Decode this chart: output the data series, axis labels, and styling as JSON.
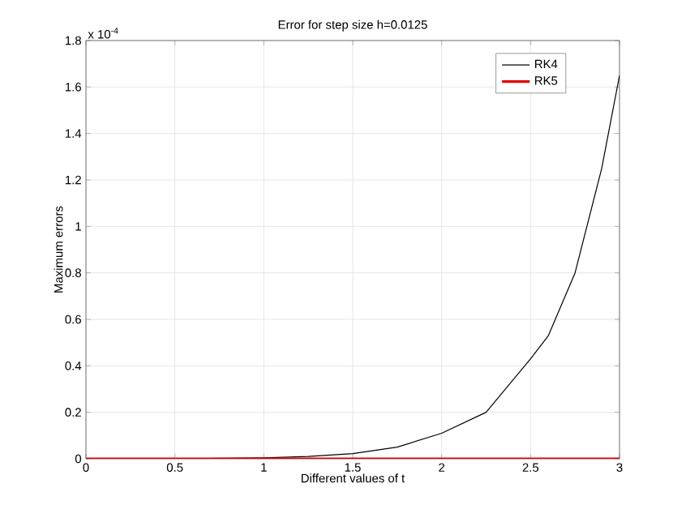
{
  "chart_data": {
    "type": "line",
    "title": "Error for step size h=0.0125",
    "xlabel": "Different values of t",
    "ylabel": "Maximum errors",
    "annotations": [
      "x 10$^{-4}$"
    ],
    "xlim": [
      0,
      3
    ],
    "ylim": [
      0,
      1.8
    ],
    "xticks": [
      0,
      0.5,
      1,
      1.5,
      2,
      2.5,
      3
    ],
    "yticks": [
      0,
      0.2,
      0.4,
      0.6,
      0.8,
      1,
      1.2,
      1.4,
      1.6,
      1.8
    ],
    "grid": true,
    "legend": "top right",
    "line_style": "solid",
    "marker": "none",
    "series": [
      {
        "name": "RK4",
        "color": "#000000",
        "x": [
          0,
          0.5,
          1,
          1.25,
          1.5,
          1.75,
          2,
          2.25,
          2.5,
          2.6,
          2.75,
          2.9,
          3
        ],
        "values": [
          0,
          0,
          0.004,
          0.01,
          0.022,
          0.05,
          0.11,
          0.2,
          0.43,
          0.53,
          0.8,
          1.25,
          1.65
        ]
      },
      {
        "name": "RK5",
        "color": "#e00000",
        "x": [
          0,
          1,
          2,
          3
        ],
        "values": [
          0,
          0,
          0,
          0
        ]
      }
    ]
  }
}
